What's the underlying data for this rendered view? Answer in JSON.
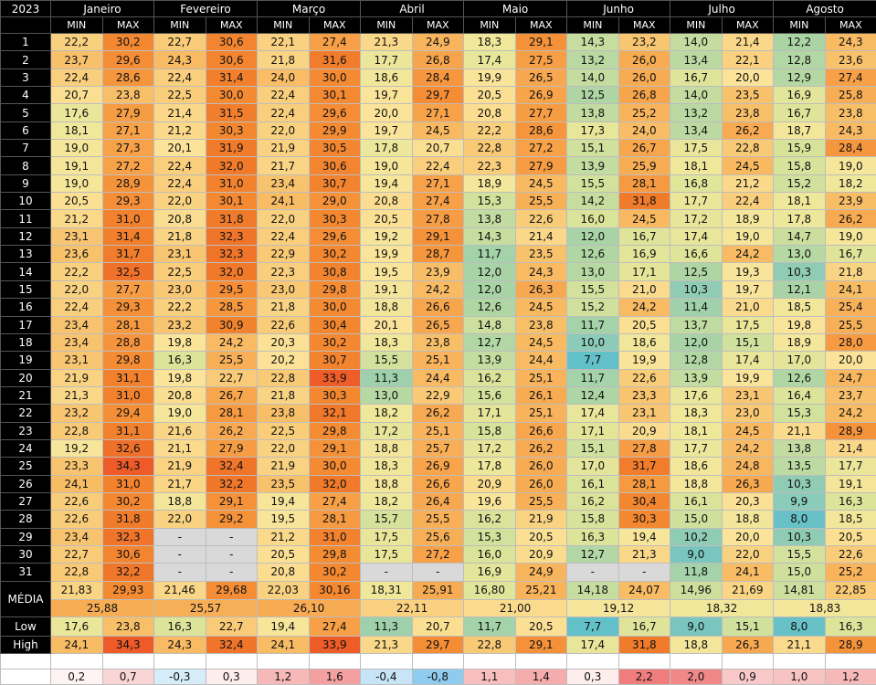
{
  "table": {
    "corner": "2023",
    "months": [
      "Janeiro",
      "Fevereiro",
      "Março",
      "Abril",
      "Maio",
      "Junho",
      "Julho",
      "Agosto"
    ],
    "subheaders": [
      "MIN",
      "MAX",
      "MIN",
      "MAX",
      "MIN",
      "MAX",
      "MIN",
      "MAX",
      "MIN",
      "MAX",
      "MIN",
      "MAX",
      "MIN",
      "MAX",
      "MIN",
      "MAX"
    ],
    "rows": [
      {
        "label": "1",
        "values": [
          "22,2",
          "30,2",
          "22,7",
          "30,6",
          "22,1",
          "27,4",
          "21,3",
          "24,9",
          "18,3",
          "29,1",
          "14,3",
          "23,2",
          "14,0",
          "21,4",
          "12,2",
          "24,3"
        ]
      },
      {
        "label": "2",
        "values": [
          "23,7",
          "29,6",
          "24,3",
          "30,6",
          "21,8",
          "31,6",
          "17,7",
          "26,8",
          "17,4",
          "27,5",
          "13,2",
          "26,0",
          "13,4",
          "22,1",
          "12,8",
          "23,6"
        ]
      },
      {
        "label": "3",
        "values": [
          "22,4",
          "28,6",
          "22,4",
          "31,4",
          "24,0",
          "30,0",
          "18,6",
          "28,4",
          "19,9",
          "26,5",
          "14,0",
          "26,0",
          "16,7",
          "20,0",
          "12,9",
          "27,4"
        ]
      },
      {
        "label": "4",
        "values": [
          "20,7",
          "23,8",
          "22,5",
          "30,0",
          "22,4",
          "30,1",
          "19,7",
          "29,7",
          "20,5",
          "26,9",
          "12,5",
          "26,8",
          "14,0",
          "23,5",
          "16,9",
          "25,8"
        ]
      },
      {
        "label": "5",
        "values": [
          "17,6",
          "27,9",
          "21,4",
          "31,5",
          "22,4",
          "29,6",
          "20,0",
          "27,1",
          "20,8",
          "27,7",
          "13,8",
          "25,2",
          "13,2",
          "23,8",
          "16,7",
          "23,8"
        ]
      },
      {
        "label": "6",
        "values": [
          "18,1",
          "27,1",
          "21,2",
          "30,3",
          "22,0",
          "29,9",
          "19,7",
          "24,5",
          "22,2",
          "28,6",
          "17,3",
          "24,0",
          "13,4",
          "26,2",
          "18,7",
          "24,3"
        ]
      },
      {
        "label": "7",
        "values": [
          "19,0",
          "27,3",
          "20,1",
          "31,9",
          "21,9",
          "30,5",
          "17,8",
          "20,7",
          "22,8",
          "27,2",
          "15,1",
          "26,7",
          "17,5",
          "22,8",
          "15,9",
          "28,4"
        ]
      },
      {
        "label": "8",
        "values": [
          "19,1",
          "27,2",
          "22,4",
          "32,0",
          "21,7",
          "30,6",
          "19,0",
          "22,4",
          "22,3",
          "27,9",
          "13,9",
          "25,9",
          "18,1",
          "24,5",
          "15,8",
          "19,0"
        ]
      },
      {
        "label": "9",
        "values": [
          "19,0",
          "28,9",
          "22,4",
          "31,0",
          "23,4",
          "30,7",
          "19,4",
          "27,1",
          "18,9",
          "24,5",
          "15,5",
          "28,1",
          "16,8",
          "21,2",
          "15,2",
          "18,2"
        ]
      },
      {
        "label": "10",
        "values": [
          "20,5",
          "29,3",
          "22,0",
          "30,1",
          "24,1",
          "29,0",
          "20,8",
          "27,4",
          "15,3",
          "25,5",
          "14,2",
          "31,8",
          "17,7",
          "22,4",
          "18,1",
          "23,9"
        ]
      },
      {
        "label": "11",
        "values": [
          "21,2",
          "31,0",
          "20,8",
          "31,8",
          "22,0",
          "30,3",
          "20,5",
          "27,8",
          "13,8",
          "22,6",
          "16,0",
          "24,5",
          "17,2",
          "18,9",
          "17,8",
          "26,2"
        ]
      },
      {
        "label": "12",
        "values": [
          "23,1",
          "31,4",
          "21,8",
          "32,3",
          "22,4",
          "29,6",
          "19,2",
          "29,1",
          "14,3",
          "21,4",
          "12,0",
          "16,7",
          "17,4",
          "19,0",
          "14,7",
          "19,0"
        ]
      },
      {
        "label": "13",
        "values": [
          "23,6",
          "31,7",
          "23,1",
          "32,3",
          "22,9",
          "30,2",
          "19,9",
          "28,7",
          "11,7",
          "23,5",
          "12,6",
          "16,9",
          "16,6",
          "24,2",
          "13,0",
          "16,7"
        ]
      },
      {
        "label": "14",
        "values": [
          "22,2",
          "32,5",
          "22,5",
          "32,0",
          "22,3",
          "30,8",
          "19,5",
          "23,9",
          "12,0",
          "24,3",
          "13,0",
          "17,1",
          "12,5",
          "19,3",
          "10,3",
          "21,8"
        ]
      },
      {
        "label": "15",
        "values": [
          "22,0",
          "27,7",
          "23,0",
          "29,5",
          "23,0",
          "29,8",
          "19,1",
          "24,2",
          "12,0",
          "26,3",
          "15,5",
          "21,0",
          "10,3",
          "19,7",
          "12,1",
          "24,1"
        ]
      },
      {
        "label": "16",
        "values": [
          "22,4",
          "29,3",
          "22,2",
          "28,5",
          "21,8",
          "30,0",
          "18,8",
          "26,6",
          "12,6",
          "24,5",
          "15,2",
          "24,2",
          "11,4",
          "21,0",
          "18,5",
          "25,4"
        ]
      },
      {
        "label": "17",
        "values": [
          "23,4",
          "28,1",
          "23,2",
          "30,9",
          "22,6",
          "30,4",
          "20,1",
          "26,5",
          "14,8",
          "23,8",
          "11,7",
          "20,5",
          "13,7",
          "17,5",
          "19,8",
          "25,5"
        ]
      },
      {
        "label": "18",
        "values": [
          "23,4",
          "28,8",
          "19,8",
          "24,2",
          "20,3",
          "30,2",
          "18,3",
          "23,8",
          "12,7",
          "24,5",
          "10,0",
          "18,6",
          "12,0",
          "15,1",
          "18,9",
          "28,0"
        ]
      },
      {
        "label": "19",
        "values": [
          "23,1",
          "29,8",
          "16,3",
          "25,5",
          "20,2",
          "30,7",
          "15,5",
          "25,1",
          "13,9",
          "24,4",
          "7,7",
          "19,9",
          "12,8",
          "17,4",
          "17,0",
          "20,0"
        ]
      },
      {
        "label": "20",
        "values": [
          "21,9",
          "31,1",
          "19,8",
          "22,7",
          "22,8",
          "33,9",
          "11,3",
          "24,4",
          "16,2",
          "25,1",
          "11,7",
          "22,6",
          "13,9",
          "19,9",
          "12,6",
          "24,7"
        ]
      },
      {
        "label": "21",
        "values": [
          "21,3",
          "31,0",
          "20,8",
          "26,7",
          "21,8",
          "30,3",
          "13,0",
          "22,9",
          "15,6",
          "26,1",
          "12,4",
          "23,3",
          "17,6",
          "23,1",
          "16,4",
          "23,7"
        ]
      },
      {
        "label": "22",
        "values": [
          "23,2",
          "29,4",
          "19,0",
          "28,1",
          "23,8",
          "32,1",
          "18,2",
          "26,2",
          "17,1",
          "25,1",
          "17,4",
          "23,1",
          "18,3",
          "23,0",
          "15,3",
          "24,2"
        ]
      },
      {
        "label": "23",
        "values": [
          "22,8",
          "31,1",
          "21,6",
          "26,2",
          "22,5",
          "29,8",
          "17,2",
          "25,1",
          "15,8",
          "26,6",
          "17,1",
          "20,9",
          "18,1",
          "24,5",
          "21,1",
          "28,9"
        ]
      },
      {
        "label": "24",
        "values": [
          "19,2",
          "32,6",
          "21,1",
          "27,9",
          "22,0",
          "29,1",
          "18,8",
          "25,7",
          "17,2",
          "26,2",
          "15,1",
          "27,8",
          "17,7",
          "24,2",
          "13,8",
          "21,4"
        ]
      },
      {
        "label": "25",
        "values": [
          "23,3",
          "34,3",
          "21,9",
          "32,4",
          "21,9",
          "30,0",
          "18,3",
          "26,9",
          "17,8",
          "26,0",
          "17,0",
          "31,7",
          "18,6",
          "24,8",
          "13,5",
          "17,7"
        ]
      },
      {
        "label": "26",
        "values": [
          "24,1",
          "31,0",
          "21,7",
          "32,2",
          "23,5",
          "32,0",
          "18,8",
          "26,6",
          "20,9",
          "26,0",
          "16,1",
          "28,1",
          "18,8",
          "26,3",
          "10,3",
          "19,1"
        ]
      },
      {
        "label": "27",
        "values": [
          "22,6",
          "30,2",
          "18,8",
          "29,1",
          "19,4",
          "27,4",
          "18,2",
          "26,4",
          "19,6",
          "25,5",
          "16,2",
          "30,4",
          "16,1",
          "20,3",
          "9,9",
          "16,3"
        ]
      },
      {
        "label": "28",
        "values": [
          "22,6",
          "31,8",
          "22,0",
          "29,2",
          "19,5",
          "28,1",
          "15,7",
          "25,5",
          "16,2",
          "21,9",
          "15,8",
          "30,3",
          "15,0",
          "18,8",
          "8,0",
          "18,5"
        ]
      },
      {
        "label": "29",
        "values": [
          "23,4",
          "32,3",
          "-",
          "-",
          "21,2",
          "31,0",
          "17,5",
          "25,6",
          "15,3",
          "20,5",
          "16,3",
          "19,4",
          "10,2",
          "20,0",
          "10,3",
          "20,5"
        ]
      },
      {
        "label": "30",
        "values": [
          "22,7",
          "30,6",
          "-",
          "-",
          "20,5",
          "29,8",
          "17,5",
          "27,2",
          "16,0",
          "20,9",
          "12,7",
          "21,3",
          "9,0",
          "22,0",
          "15,5",
          "22,6"
        ]
      },
      {
        "label": "31",
        "values": [
          "22,8",
          "32,2",
          "-",
          "-",
          "20,8",
          "30,2",
          "-",
          "-",
          "16,9",
          "24,9",
          "-",
          "-",
          "11,8",
          "24,1",
          "15,0",
          "25,2"
        ]
      }
    ],
    "media": {
      "label": "MÉDIA",
      "values": [
        "21,83",
        "29,93",
        "21,46",
        "29,68",
        "22,03",
        "30,16",
        "18,31",
        "25,91",
        "16,80",
        "25,21",
        "14,18",
        "24,07",
        "14,96",
        "21,69",
        "14,81",
        "22,85"
      ],
      "averages": [
        "25,88",
        "25,57",
        "26,10",
        "22,11",
        "21,00",
        "19,12",
        "18,32",
        "18,83"
      ]
    },
    "low": {
      "label": "Low",
      "values": [
        "17,6",
        "23,8",
        "16,3",
        "22,7",
        "19,4",
        "27,4",
        "11,3",
        "20,7",
        "11,7",
        "20,5",
        "7,7",
        "16,7",
        "9,0",
        "15,1",
        "8,0",
        "16,3"
      ]
    },
    "high": {
      "label": "High",
      "values": [
        "24,1",
        "34,3",
        "24,3",
        "32,4",
        "24,1",
        "33,9",
        "21,3",
        "29,7",
        "22,8",
        "29,1",
        "17,4",
        "31,8",
        "18,8",
        "26,3",
        "21,1",
        "28,9"
      ]
    },
    "diff": {
      "values": [
        "0,2",
        "0,7",
        "-0,3",
        "0,3",
        "1,2",
        "1,6",
        "-0,4",
        "-0,8",
        "1,1",
        "1,4",
        "0,3",
        "2,2",
        "2,0",
        "0,9",
        "1,0",
        "1,2"
      ]
    }
  }
}
